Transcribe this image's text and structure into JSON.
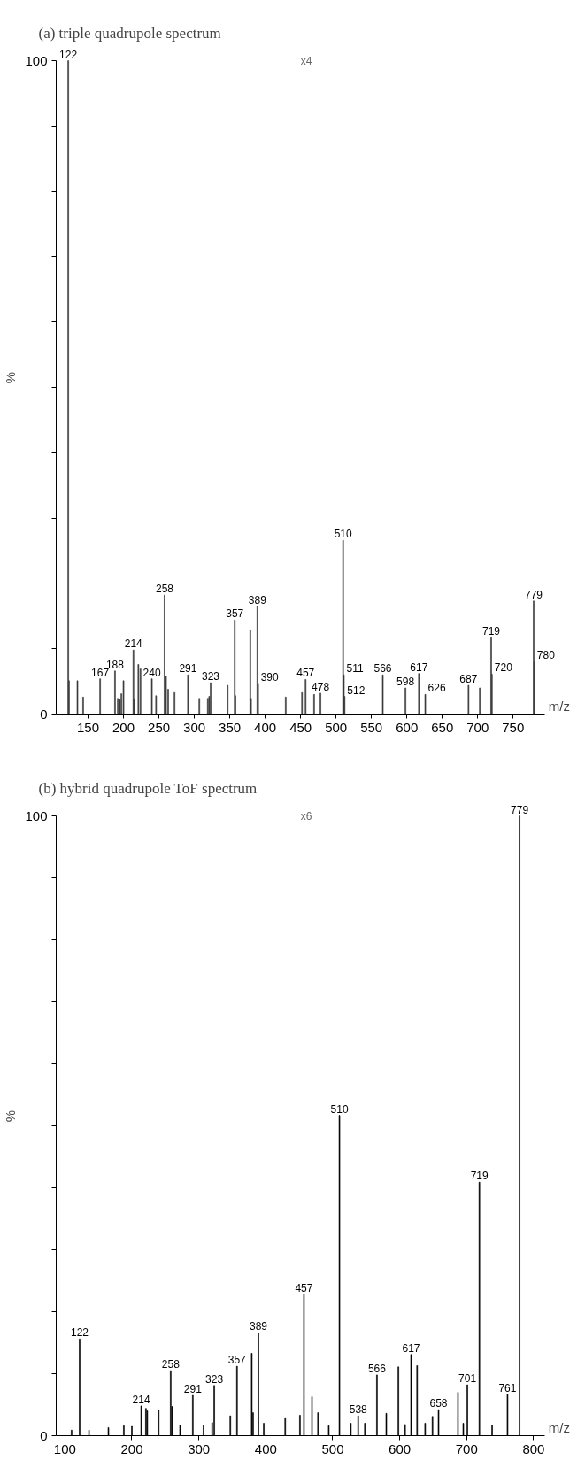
{
  "chart_data": [
    {
      "type": "bar",
      "title": "(a) triple quadrupole spectrum",
      "xlabel": "m/z",
      "ylabel": "%",
      "x": [
        122,
        123,
        135,
        143,
        167,
        188,
        192,
        195,
        197,
        200,
        214,
        215,
        221,
        224,
        240,
        246,
        258,
        260,
        263,
        272,
        291,
        307,
        319,
        321,
        323,
        347,
        357,
        358,
        379,
        380,
        389,
        390,
        429,
        452,
        457,
        469,
        478,
        510,
        511,
        512,
        566,
        598,
        617,
        626,
        687,
        703,
        719,
        720,
        779,
        780
      ],
      "values": [
        100,
        5.1,
        5.1,
        2.6,
        5.4,
        6.6,
        2.4,
        2.2,
        3.1,
        5.1,
        9.8,
        2.2,
        7.6,
        6.9,
        5.4,
        2.8,
        18.2,
        5.8,
        3.8,
        3.3,
        6.0,
        2.4,
        2.4,
        2.7,
        4.8,
        4.4,
        14.4,
        2.8,
        12.8,
        2.4,
        16.5,
        4.7,
        2.6,
        3.3,
        5.3,
        3.0,
        3.2,
        26.6,
        6.0,
        2.7,
        6.0,
        4.0,
        6.2,
        3.0,
        4.4,
        4.0,
        11.7,
        6.1,
        17.3,
        8.0
      ],
      "color": "#3a3a3a",
      "xlim": [
        105,
        795
      ],
      "xticks": [
        150,
        200,
        250,
        300,
        350,
        400,
        450,
        500,
        550,
        600,
        650,
        700,
        750
      ],
      "ylim": [
        0,
        100
      ],
      "yticks": [
        0,
        {
          "value": 10,
          "label": null
        },
        {
          "value": 20,
          "label": null
        },
        {
          "value": 30,
          "label": null
        },
        {
          "value": 40,
          "label": null
        },
        {
          "value": 50,
          "label": null
        },
        {
          "value": 60,
          "label": null
        },
        {
          "value": 70,
          "label": null
        },
        {
          "value": 80,
          "label": null
        },
        {
          "value": 90,
          "label": null
        },
        100
      ],
      "annotations": [
        "x4",
        {
          "text": "122",
          "x": 122,
          "y": 100
        },
        {
          "text": "167",
          "x": 167,
          "y": 5.4
        },
        {
          "text": "188",
          "x": 188,
          "y": 6.6
        },
        {
          "text": "214",
          "x": 214,
          "y": 9.8
        },
        {
          "text": "240",
          "x": 240,
          "y": 5.4
        },
        {
          "text": "258",
          "x": 258,
          "y": 18.2
        },
        {
          "text": "291",
          "x": 291,
          "y": 6.0
        },
        {
          "text": "323",
          "x": 323,
          "y": 4.8
        },
        {
          "text": "357",
          "x": 357,
          "y": 14.4
        },
        {
          "text": "389",
          "x": 389,
          "y": 16.5
        },
        {
          "text": "390",
          "x": 390,
          "y": 4.7
        },
        {
          "text": "457",
          "x": 457,
          "y": 5.3
        },
        {
          "text": "478",
          "x": 478,
          "y": 3.2
        },
        {
          "text": "510",
          "x": 510,
          "y": 26.6
        },
        {
          "text": "511",
          "x": 511,
          "y": 6.0
        },
        {
          "text": "512",
          "x": 512,
          "y": 2.7
        },
        {
          "text": "566",
          "x": 566,
          "y": 6.0
        },
        {
          "text": "598",
          "x": 598,
          "y": 4.0
        },
        {
          "text": "617",
          "x": 617,
          "y": 6.2
        },
        {
          "text": "626",
          "x": 626,
          "y": 3.0
        },
        {
          "text": "687",
          "x": 687,
          "y": 4.4
        },
        {
          "text": "719",
          "x": 719,
          "y": 11.7
        },
        {
          "text": "720",
          "x": 720,
          "y": 6.1
        },
        {
          "text": "779",
          "x": 779,
          "y": 17.3
        },
        {
          "text": "780",
          "x": 780,
          "y": 8.0
        }
      ]
    },
    {
      "type": "bar",
      "title": "(b) hybrid quadrupole ToF spectrum",
      "xlabel": "m/z",
      "ylabel": "%",
      "x": [
        110,
        122,
        136,
        165,
        188,
        200,
        214,
        221,
        223,
        240,
        258,
        260,
        272,
        291,
        307,
        320,
        323,
        347,
        357,
        379,
        381,
        389,
        397,
        429,
        451,
        457,
        469,
        478,
        494,
        510,
        527,
        538,
        548,
        566,
        580,
        598,
        608,
        617,
        626,
        638,
        649,
        658,
        687,
        695,
        701,
        719,
        738,
        761,
        779
      ],
      "values": [
        0.9,
        15.6,
        0.9,
        1.3,
        1.6,
        1.5,
        4.8,
        4.4,
        4.0,
        4.1,
        10.5,
        4.7,
        1.7,
        6.5,
        1.7,
        2.1,
        8.1,
        3.2,
        11.2,
        13.3,
        3.7,
        16.6,
        2.0,
        2.9,
        3.3,
        22.8,
        6.3,
        3.7,
        1.6,
        51.7,
        2.0,
        3.2,
        2.0,
        9.8,
        3.6,
        11.1,
        1.8,
        13.1,
        11.3,
        2.0,
        3.1,
        4.2,
        7.0,
        2.0,
        8.2,
        40.9,
        1.7,
        6.7,
        100
      ],
      "color": "#000000",
      "xlim": [
        87,
        817
      ],
      "xticks": [
        100,
        200,
        300,
        400,
        500,
        600,
        700,
        800
      ],
      "ylim": [
        0,
        100
      ],
      "yticks": [
        0,
        {
          "value": 10,
          "label": null
        },
        {
          "value": 20,
          "label": null
        },
        {
          "value": 30,
          "label": null
        },
        {
          "value": 40,
          "label": null
        },
        {
          "value": 50,
          "label": null
        },
        {
          "value": 60,
          "label": null
        },
        {
          "value": 70,
          "label": null
        },
        {
          "value": 80,
          "label": null
        },
        {
          "value": 90,
          "label": null
        },
        100
      ],
      "annotations": [
        "x6",
        {
          "text": "122",
          "x": 122,
          "y": 15.6
        },
        {
          "text": "214",
          "x": 214,
          "y": 4.8
        },
        {
          "text": "258",
          "x": 258,
          "y": 10.5
        },
        {
          "text": "291",
          "x": 291,
          "y": 6.5
        },
        {
          "text": "323",
          "x": 323,
          "y": 8.1
        },
        {
          "text": "357",
          "x": 357,
          "y": 11.2
        },
        {
          "text": "389",
          "x": 389,
          "y": 16.6
        },
        {
          "text": "457",
          "x": 457,
          "y": 22.8
        },
        {
          "text": "510",
          "x": 510,
          "y": 51.7
        },
        {
          "text": "538",
          "x": 538,
          "y": 3.2
        },
        {
          "text": "566",
          "x": 566,
          "y": 9.8
        },
        {
          "text": "617",
          "x": 617,
          "y": 13.1
        },
        {
          "text": "658",
          "x": 658,
          "y": 4.2
        },
        {
          "text": "701",
          "x": 701,
          "y": 8.2
        },
        {
          "text": "719",
          "x": 719,
          "y": 40.9
        },
        {
          "text": "761",
          "x": 761,
          "y": 6.7
        },
        {
          "text": "779",
          "x": 779,
          "y": 100
        }
      ]
    }
  ]
}
